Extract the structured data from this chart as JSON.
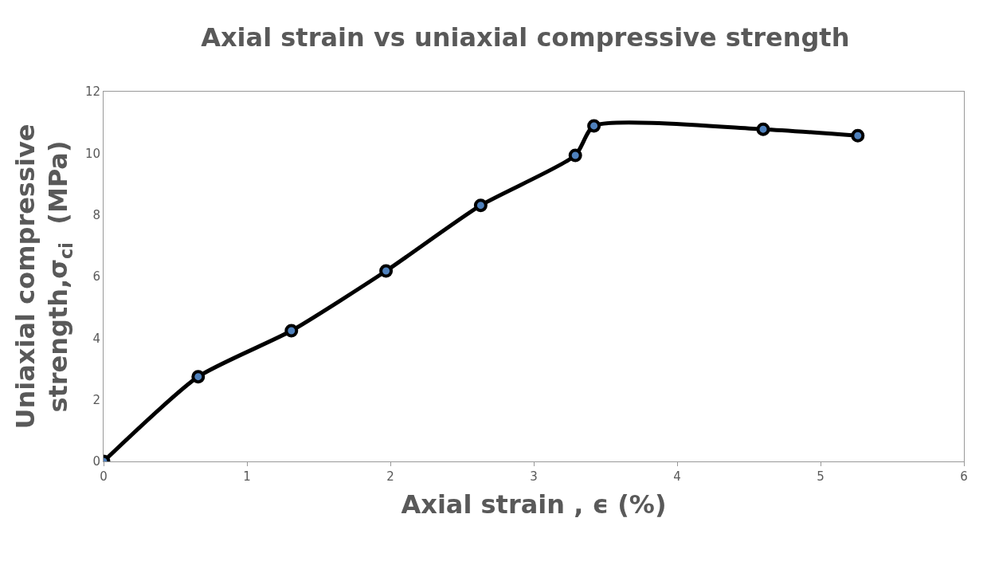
{
  "chart_data": {
    "type": "line",
    "title": "Axial strain vs uniaxial compressive strength",
    "xlabel": "Axial strain , ϵ (%)",
    "ylabel": "Uniaxial compressive\nstrength,σ$_{ci}$  (MPa)",
    "x": [
      0,
      0.66,
      1.31,
      1.97,
      2.63,
      3.29,
      3.42,
      4.6,
      5.26
    ],
    "series": [
      {
        "color": "#000000",
        "values": [
          0,
          2.75,
          4.24,
          6.18,
          8.31,
          9.93,
          10.89,
          10.78,
          10.57
        ]
      }
    ],
    "xlim": [
      0,
      6
    ],
    "xticks": [
      0,
      1,
      2,
      3,
      4,
      5,
      6
    ],
    "ylim": [
      0,
      12
    ],
    "yticks": [
      0,
      2,
      4,
      6,
      8,
      10,
      12
    ],
    "marker": "circle",
    "line_style": "solid"
  }
}
